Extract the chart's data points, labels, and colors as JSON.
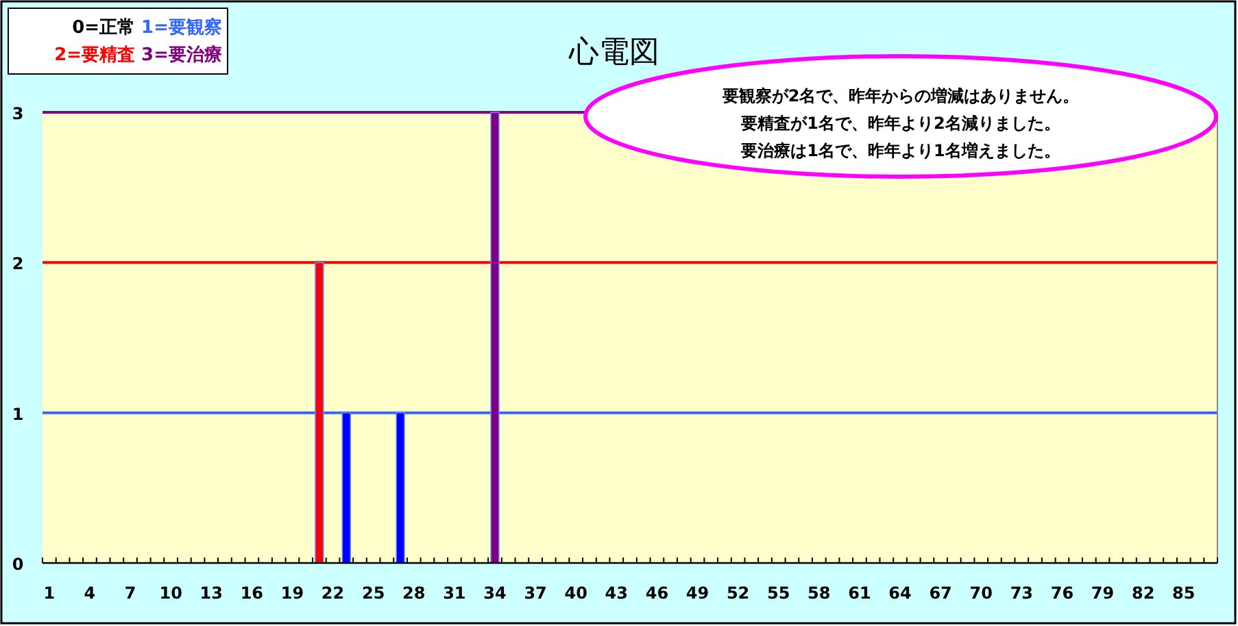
{
  "chart_data": {
    "type": "bar",
    "title": "心電図",
    "categories": [
      "1",
      null,
      null,
      "4",
      null,
      null,
      "7",
      null,
      null,
      "10",
      null,
      null,
      "13",
      null,
      null,
      "16",
      null,
      null,
      "19",
      null,
      null,
      "22",
      null,
      null,
      "25",
      null,
      null,
      "28",
      null,
      null,
      "31",
      null,
      null,
      "34",
      null,
      null,
      "37",
      null,
      null,
      "40",
      null,
      null,
      "43",
      null,
      null,
      "46",
      null,
      null,
      "49",
      null,
      null,
      "52",
      null,
      null,
      "55",
      null,
      null,
      "58",
      null,
      null,
      "61",
      null,
      null,
      "64",
      null,
      null,
      "67",
      null,
      null,
      "70",
      null,
      null,
      "73",
      null,
      null,
      "76",
      null,
      null,
      "79",
      null,
      null,
      "82",
      null,
      null,
      "85",
      null,
      null
    ],
    "values": [
      0,
      0,
      0,
      0,
      0,
      0,
      0,
      0,
      0,
      0,
      0,
      0,
      0,
      0,
      0,
      0,
      0,
      0,
      0,
      0,
      2,
      0,
      1,
      0,
      0,
      0,
      1,
      0,
      0,
      0,
      0,
      0,
      0,
      3,
      0,
      0,
      0,
      0,
      0,
      0,
      0,
      0,
      0,
      0,
      0,
      0,
      0,
      0,
      0,
      0,
      0,
      0,
      0,
      0,
      0,
      0,
      0,
      0,
      0,
      0,
      0,
      0,
      0,
      0,
      0,
      0,
      0,
      0,
      0,
      0,
      0,
      0,
      0,
      0,
      0,
      0,
      0,
      0,
      0,
      0,
      0,
      0,
      0,
      0,
      0,
      0,
      0
    ],
    "colors": [
      "#0000ff",
      "#0000ff",
      "#0000ff",
      "#0000ff",
      "#0000ff",
      "#0000ff",
      "#0000ff",
      "#0000ff",
      "#0000ff",
      "#0000ff",
      "#0000ff",
      "#0000ff",
      "#0000ff",
      "#0000ff",
      "#0000ff",
      "#0000ff",
      "#0000ff",
      "#0000ff",
      "#0000ff",
      "#0000ff",
      "#ff0000",
      "#0000ff",
      "#0000ff",
      "#0000ff",
      "#0000ff",
      "#0000ff",
      "#0000ff",
      "#0000ff",
      "#0000ff",
      "#0000ff",
      "#0000ff",
      "#0000ff",
      "#0000ff",
      "#800080",
      "#0000ff",
      "#0000ff",
      "#0000ff",
      "#0000ff",
      "#0000ff",
      "#0000ff",
      "#0000ff",
      "#0000ff",
      "#0000ff",
      "#0000ff",
      "#0000ff",
      "#0000ff",
      "#0000ff",
      "#0000ff",
      "#0000ff",
      "#0000ff",
      "#0000ff",
      "#0000ff",
      "#0000ff",
      "#0000ff",
      "#0000ff",
      "#0000ff",
      "#0000ff",
      "#0000ff",
      "#0000ff",
      "#0000ff",
      "#0000ff",
      "#0000ff",
      "#0000ff",
      "#0000ff",
      "#0000ff",
      "#0000ff",
      "#0000ff",
      "#0000ff",
      "#0000ff",
      "#0000ff",
      "#0000ff",
      "#0000ff",
      "#0000ff",
      "#0000ff",
      "#0000ff",
      "#0000ff",
      "#0000ff",
      "#0000ff",
      "#0000ff",
      "#0000ff",
      "#0000ff",
      "#0000ff",
      "#0000ff",
      "#0000ff",
      "#0000ff",
      "#0000ff",
      "#0000ff"
    ],
    "ylim": [
      0,
      3
    ],
    "yticks": [
      0,
      1,
      2,
      3
    ],
    "legend": "top left",
    "ref_lines": [
      {
        "axis": "y",
        "value": 1,
        "label": "1=要観察",
        "color": "#3366ff"
      },
      {
        "axis": "y",
        "value": 2,
        "label": "2=要精査",
        "color": "#ff0000"
      },
      {
        "axis": "y",
        "value": 3,
        "label": "3=要治療",
        "color": "#800080"
      }
    ],
    "annotations": [
      "0=正常",
      "要観察が2名で、昨年からの増減はありません。",
      "要精査が1名で、昨年より2名減りました。",
      "要治療は1名で、昨年より1名増えました。"
    ]
  }
}
